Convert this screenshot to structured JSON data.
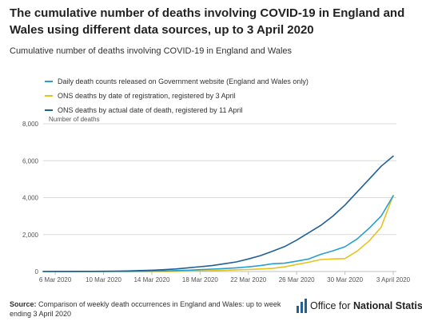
{
  "title": "The cumulative number of deaths involving COVID-19 in England and Wales using different data sources, up to 3 April 2020",
  "subtitle": "Cumulative number of deaths involving COVID-19 in England and Wales",
  "source": {
    "label": "Source:",
    "text": " Comparison of weekly death occurrences in England and Wales: up to week ending 3 April 2020"
  },
  "logo": {
    "text_light": "Office for ",
    "text_bold": "National Statistics"
  },
  "colors": {
    "series1": "#206095",
    "series2": "#27a0cc",
    "series3": "#e8c31e",
    "grid": "#d9d9d9",
    "axis_text": "#555555"
  },
  "chart_data": {
    "type": "line",
    "ylabel": "Number of deaths",
    "ylim": [
      0,
      8000
    ],
    "yticks": [
      0,
      2000,
      4000,
      6000,
      8000
    ],
    "ytick_labels": [
      "0",
      "2,000",
      "4,000",
      "6,000",
      "8,000"
    ],
    "x": [
      "2020-03-05",
      "2020-03-06",
      "2020-03-07",
      "2020-03-08",
      "2020-03-09",
      "2020-03-10",
      "2020-03-11",
      "2020-03-12",
      "2020-03-13",
      "2020-03-14",
      "2020-03-15",
      "2020-03-16",
      "2020-03-17",
      "2020-03-18",
      "2020-03-19",
      "2020-03-20",
      "2020-03-21",
      "2020-03-22",
      "2020-03-23",
      "2020-03-24",
      "2020-03-25",
      "2020-03-26",
      "2020-03-27",
      "2020-03-28",
      "2020-03-29",
      "2020-03-30",
      "2020-03-31",
      "2020-04-01",
      "2020-04-02",
      "2020-04-03"
    ],
    "xtick_labels": [
      "6 Mar 2020",
      "10 Mar 2020",
      "14 Mar 2020",
      "18 Mar 2020",
      "22 Mar 2020",
      "26 Mar 2020",
      "30 Mar 2020",
      "3 April 2020"
    ],
    "xtick_dates": [
      "2020-03-06",
      "2020-03-10",
      "2020-03-14",
      "2020-03-18",
      "2020-03-22",
      "2020-03-26",
      "2020-03-30",
      "2020-04-03"
    ],
    "series": [
      {
        "name": "Daily death counts released on Government website (England and Wales only)",
        "color": "#27a0cc",
        "values": [
          1,
          1,
          2,
          3,
          4,
          5,
          7,
          9,
          14,
          20,
          30,
          50,
          70,
          100,
          130,
          160,
          200,
          250,
          320,
          420,
          450,
          560,
          680,
          930,
          1120,
          1340,
          1760,
          2340,
          3000,
          4100
        ]
      },
      {
        "name": "ONS deaths by date of registration, registered by 3 April",
        "color": "#e8c31e",
        "values": [
          0,
          0,
          0,
          0,
          0,
          1,
          1,
          2,
          3,
          4,
          5,
          10,
          20,
          30,
          50,
          70,
          90,
          110,
          140,
          170,
          250,
          380,
          500,
          650,
          680,
          700,
          1100,
          1650,
          2400,
          4120
        ]
      },
      {
        "name": "ONS deaths by actual date of death, registered by 11 April",
        "color": "#206095",
        "values": [
          2,
          3,
          5,
          7,
          10,
          15,
          20,
          30,
          50,
          70,
          100,
          140,
          200,
          260,
          320,
          420,
          520,
          680,
          860,
          1100,
          1350,
          1700,
          2100,
          2500,
          3000,
          3600,
          4300,
          5000,
          5700,
          6250
        ]
      }
    ]
  }
}
